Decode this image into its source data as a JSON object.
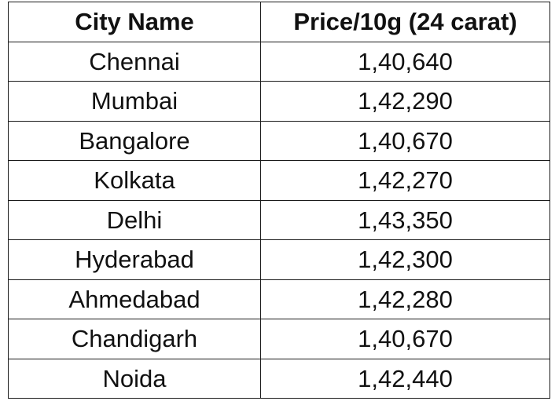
{
  "table": {
    "headers": [
      "City Name",
      "Price/10g (24 carat)"
    ],
    "rows": [
      [
        "Chennai",
        "1,40,640"
      ],
      [
        "Mumbai",
        "1,42,290"
      ],
      [
        "Bangalore",
        "1,40,670"
      ],
      [
        "Kolkata",
        "1,42,270"
      ],
      [
        "Delhi",
        "1,43,350"
      ],
      [
        "Hyderabad",
        "1,42,300"
      ],
      [
        "Ahmedabad",
        "1,42,280"
      ],
      [
        "Chandigarh",
        "1,40,670"
      ],
      [
        "Noida",
        "1,42,440"
      ]
    ]
  }
}
